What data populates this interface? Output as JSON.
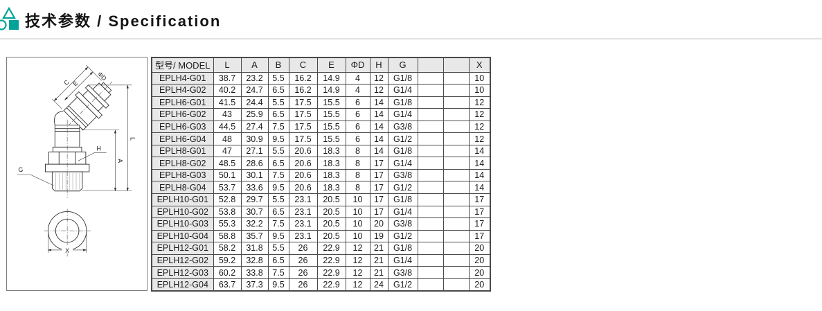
{
  "colors": {
    "accent": "#00A39A",
    "table_border": "#4A4A4A",
    "header_bg": "#E8E8E8",
    "divider": "#E2E2E2"
  },
  "header": {
    "title": "技术参数 / Specification",
    "icon": "triangle-circle-square-logo"
  },
  "drawing": {
    "description": "45-degree elbow push-in pneumatic fitting, side view and bottom view",
    "labels": {
      "c": "C",
      "e": "E",
      "phi_d": "ΦD",
      "l": "L",
      "a": "A",
      "h": "H",
      "g": "G",
      "x": "X"
    }
  },
  "table": {
    "columns": [
      "型号/ MODEL",
      "L",
      "A",
      "B",
      "C",
      "E",
      "ΦD",
      "H",
      "G",
      "",
      "",
      "X"
    ],
    "rows": [
      [
        "EPLH4-G01",
        "38.7",
        "23.2",
        "5.5",
        "16.2",
        "14.9",
        "4",
        "12",
        "G1/8",
        "",
        "",
        "10"
      ],
      [
        "EPLH4-G02",
        "40.2",
        "24.7",
        "6.5",
        "16.2",
        "14.9",
        "4",
        "12",
        "G1/4",
        "",
        "",
        "10"
      ],
      [
        "EPLH6-G01",
        "41.5",
        "24.4",
        "5.5",
        "17.5",
        "15.5",
        "6",
        "14",
        "G1/8",
        "",
        "",
        "12"
      ],
      [
        "EPLH6-G02",
        "43",
        "25.9",
        "6.5",
        "17.5",
        "15.5",
        "6",
        "14",
        "G1/4",
        "",
        "",
        "12"
      ],
      [
        "EPLH6-G03",
        "44.5",
        "27.4",
        "7.5",
        "17.5",
        "15.5",
        "6",
        "14",
        "G3/8",
        "",
        "",
        "12"
      ],
      [
        "EPLH6-G04",
        "48",
        "30.9",
        "9.5",
        "17.5",
        "15.5",
        "6",
        "14",
        "G1/2",
        "",
        "",
        "12"
      ],
      [
        "EPLH8-G01",
        "47",
        "27.1",
        "5.5",
        "20.6",
        "18.3",
        "8",
        "14",
        "G1/8",
        "",
        "",
        "14"
      ],
      [
        "EPLH8-G02",
        "48.5",
        "28.6",
        "6.5",
        "20.6",
        "18.3",
        "8",
        "17",
        "G1/4",
        "",
        "",
        "14"
      ],
      [
        "EPLH8-G03",
        "50.1",
        "30.1",
        "7.5",
        "20.6",
        "18.3",
        "8",
        "17",
        "G3/8",
        "",
        "",
        "14"
      ],
      [
        "EPLH8-G04",
        "53.7",
        "33.6",
        "9.5",
        "20.6",
        "18.3",
        "8",
        "17",
        "G1/2",
        "",
        "",
        "14"
      ],
      [
        "EPLH10-G01",
        "52.8",
        "29.7",
        "5.5",
        "23.1",
        "20.5",
        "10",
        "17",
        "G1/8",
        "",
        "",
        "17"
      ],
      [
        "EPLH10-G02",
        "53.8",
        "30.7",
        "6.5",
        "23.1",
        "20.5",
        "10",
        "17",
        "G1/4",
        "",
        "",
        "17"
      ],
      [
        "EPLH10-G03",
        "55.3",
        "32.2",
        "7.5",
        "23.1",
        "20.5",
        "10",
        "20",
        "G3/8",
        "",
        "",
        "17"
      ],
      [
        "EPLH10-G04",
        "58.8",
        "35.7",
        "9.5",
        "23.1",
        "20.5",
        "10",
        "19",
        "G1/2",
        "",
        "",
        "17"
      ],
      [
        "EPLH12-G01",
        "58.2",
        "31.8",
        "5.5",
        "26",
        "22.9",
        "12",
        "21",
        "G1/8",
        "",
        "",
        "20"
      ],
      [
        "EPLH12-G02",
        "59.2",
        "32.8",
        "6.5",
        "26",
        "22.9",
        "12",
        "21",
        "G1/4",
        "",
        "",
        "20"
      ],
      [
        "EPLH12-G03",
        "60.2",
        "33.8",
        "7.5",
        "26",
        "22.9",
        "12",
        "21",
        "G3/8",
        "",
        "",
        "20"
      ],
      [
        "EPLH12-G04",
        "63.7",
        "37.3",
        "9.5",
        "26",
        "22.9",
        "12",
        "24",
        "G1/2",
        "",
        "",
        "20"
      ]
    ]
  }
}
